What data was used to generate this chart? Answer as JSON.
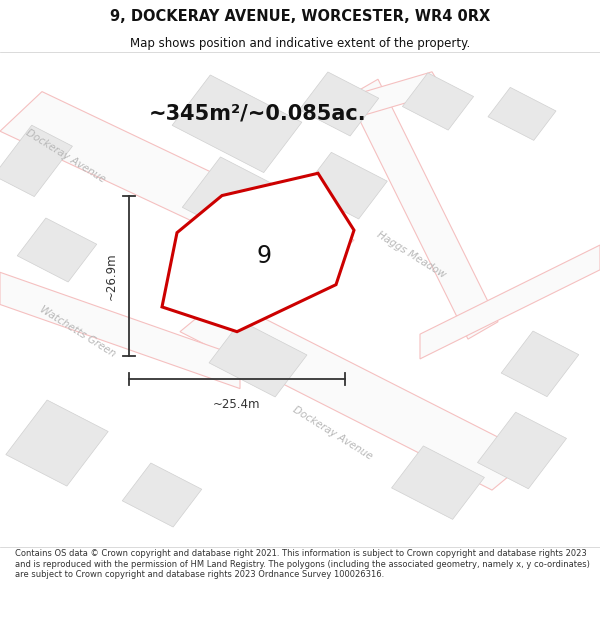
{
  "title": "9, DOCKERAY AVENUE, WORCESTER, WR4 0RX",
  "subtitle": "Map shows position and indicative extent of the property.",
  "area_label": "~345m²/~0.085ac.",
  "plot_number": "9",
  "width_label": "~25.4m",
  "height_label": "~26.9m",
  "footer": "Contains OS data © Crown copyright and database right 2021. This information is subject to Crown copyright and database rights 2023 and is reproduced with the permission of HM Land Registry. The polygons (including the associated geometry, namely x, y co-ordinates) are subject to Crown copyright and database rights 2023 Ordnance Survey 100026316.",
  "bg_color": "#ffffff",
  "plot_fill": "#ffffff",
  "plot_edge": "#cc0000",
  "road_color": "#f5c0c0",
  "road_edge": "#f0a0a0",
  "block_fill": "#e8e8e8",
  "block_edge": "#d0d0d0",
  "street_label_color": "#b8b8b8",
  "dim_color": "#333333"
}
